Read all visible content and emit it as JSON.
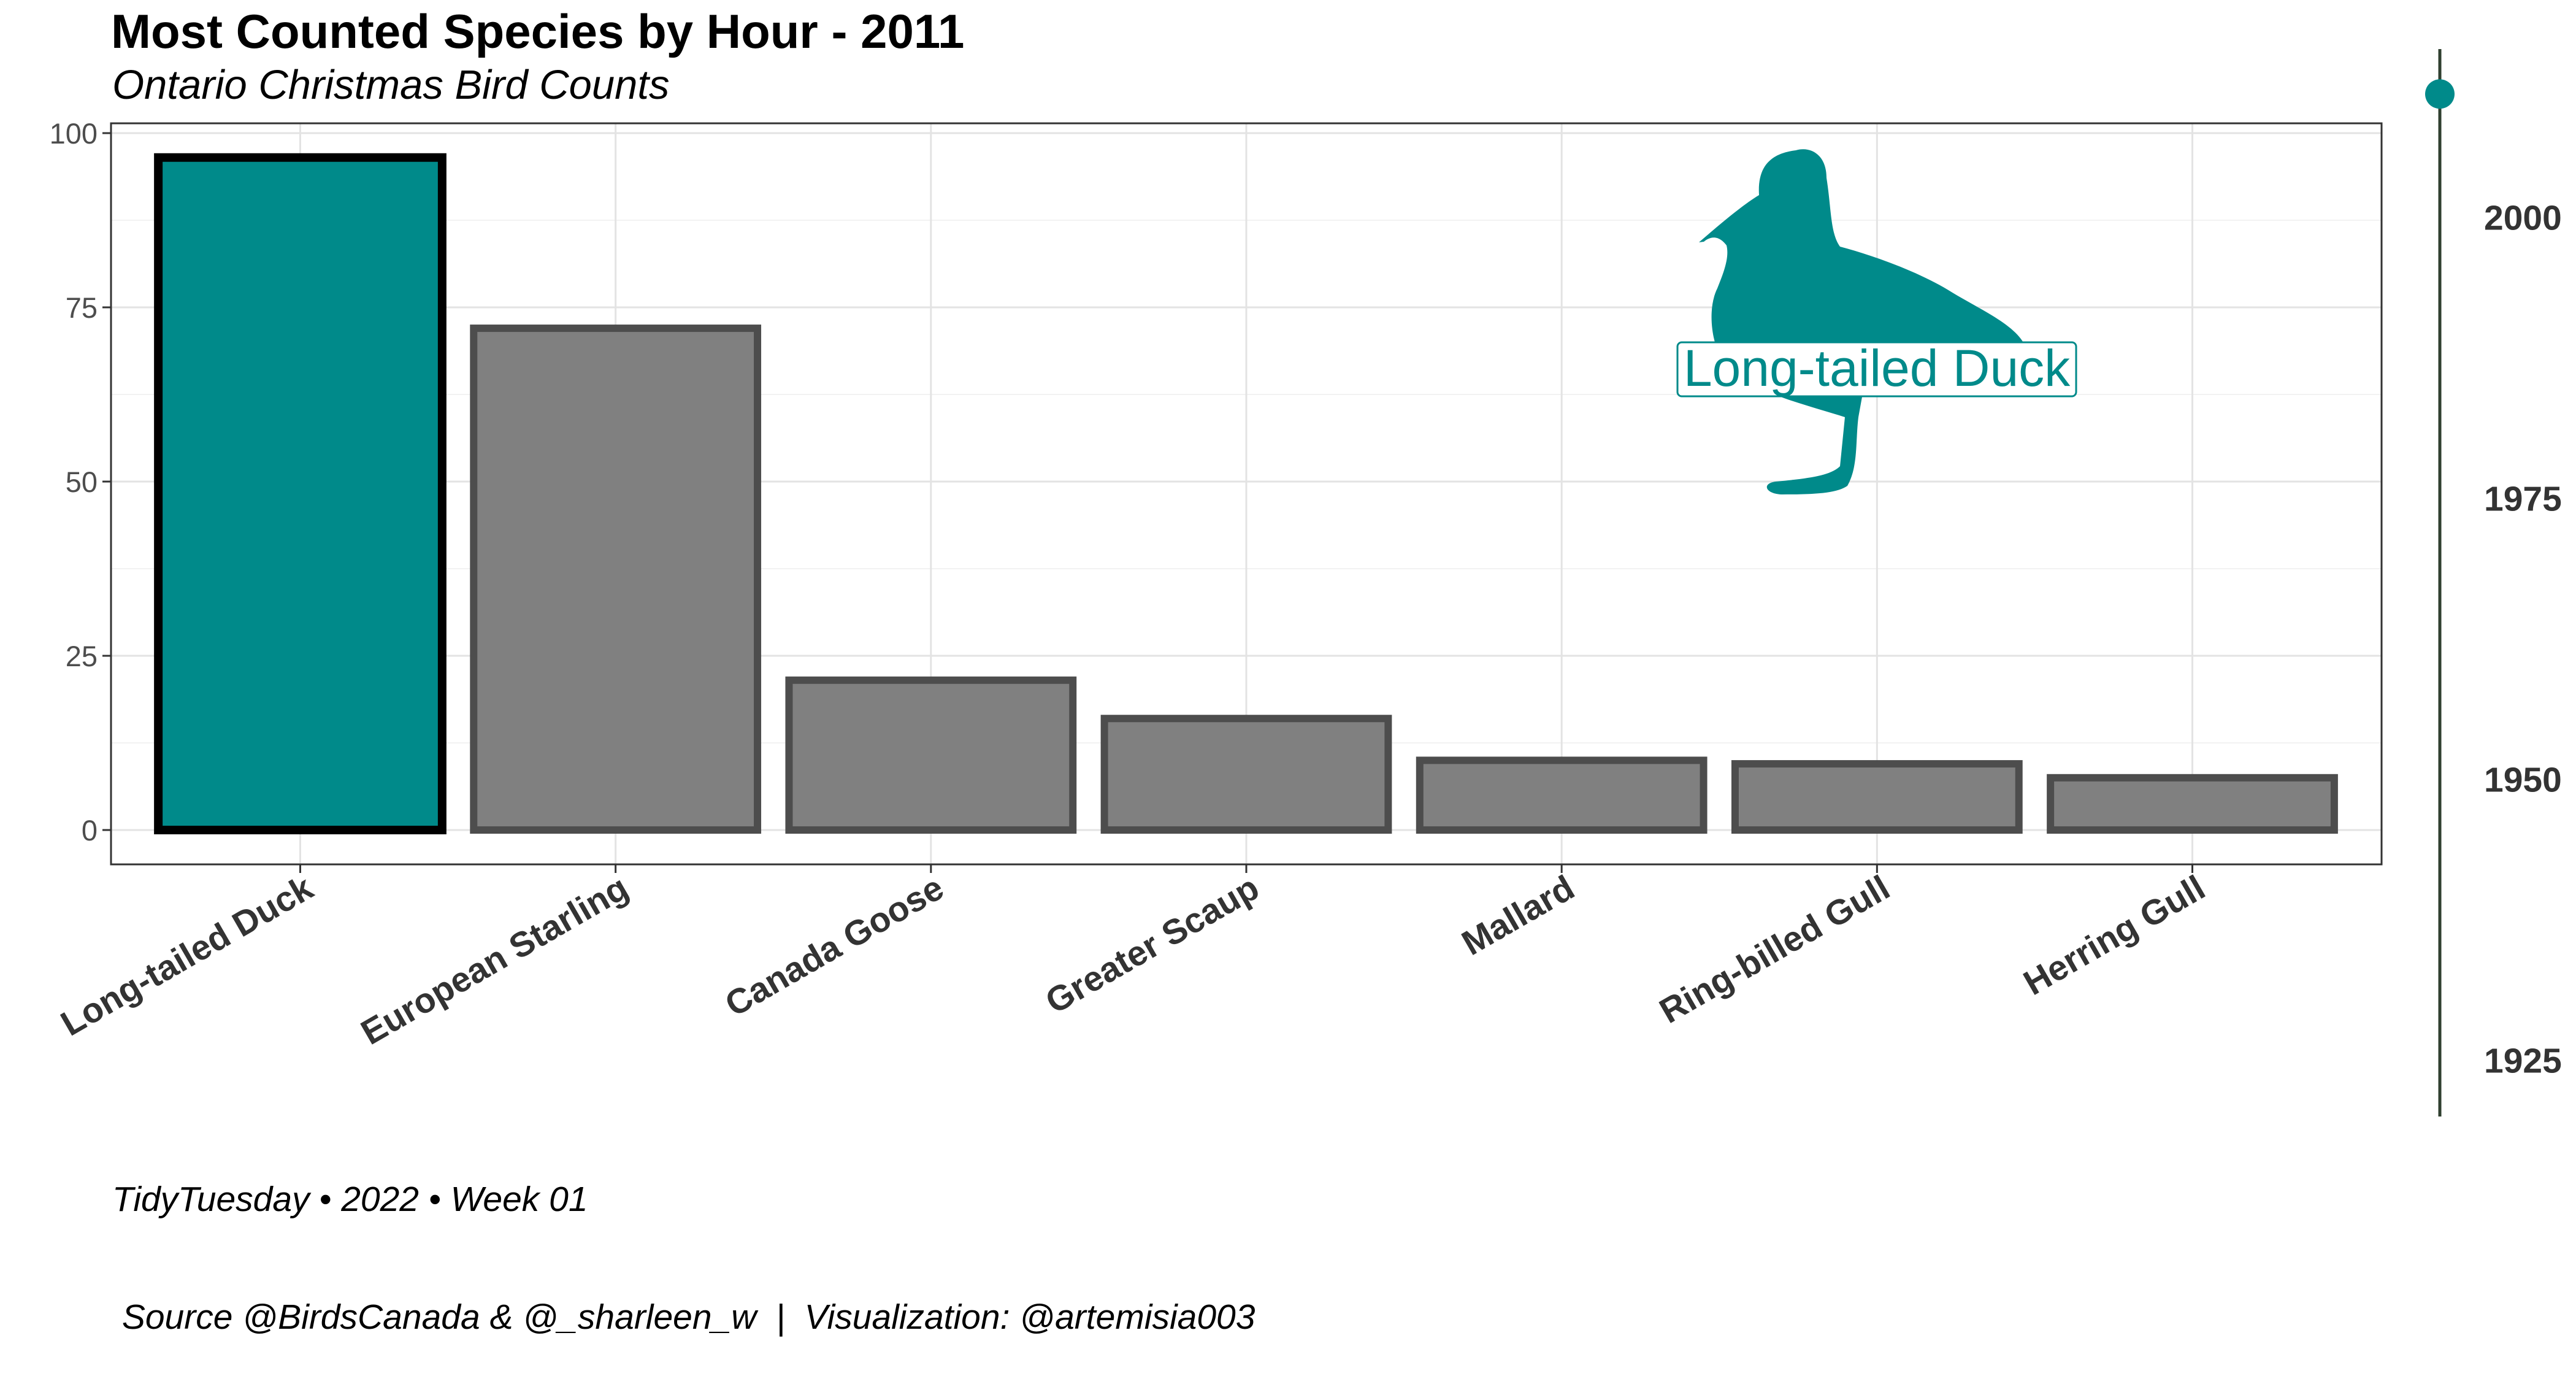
{
  "title": "Most Counted Species by Hour - 2011",
  "subtitle": "Ontario Christmas Bird Counts",
  "caption": {
    "line1": "TidyTuesday • 2022 • Week 01",
    "line2": " Source @BirdsCanada & @_sharleen_w  |  Visualization: @artemisia003"
  },
  "colors": {
    "highlight": "#008a8a",
    "bar": "#808080",
    "bar_border": "#4d4d4d",
    "highlight_border": "#000000",
    "timeline": "#2f3f2f"
  },
  "chart_data": {
    "type": "bar",
    "categories": [
      "Long-tailed Duck",
      "European Starling",
      "Canada Goose",
      "Greater Scaup",
      "Mallard",
      "Ring-billed Gull",
      "Herring Gull"
    ],
    "values": [
      96.5,
      72,
      21.5,
      16,
      10,
      9.5,
      7.5
    ],
    "highlighted": "Long-tailed Duck",
    "ylim": [
      0,
      100
    ],
    "yticks": [
      0,
      25,
      50,
      75,
      100
    ],
    "grid": true,
    "annotation": {
      "label": "Long-tailed Duck",
      "icon": "duck-silhouette-icon"
    },
    "timeline": {
      "ticks": [
        2000,
        1975,
        1950,
        1925
      ],
      "current": 2011,
      "range": [
        1920,
        2015
      ]
    }
  }
}
